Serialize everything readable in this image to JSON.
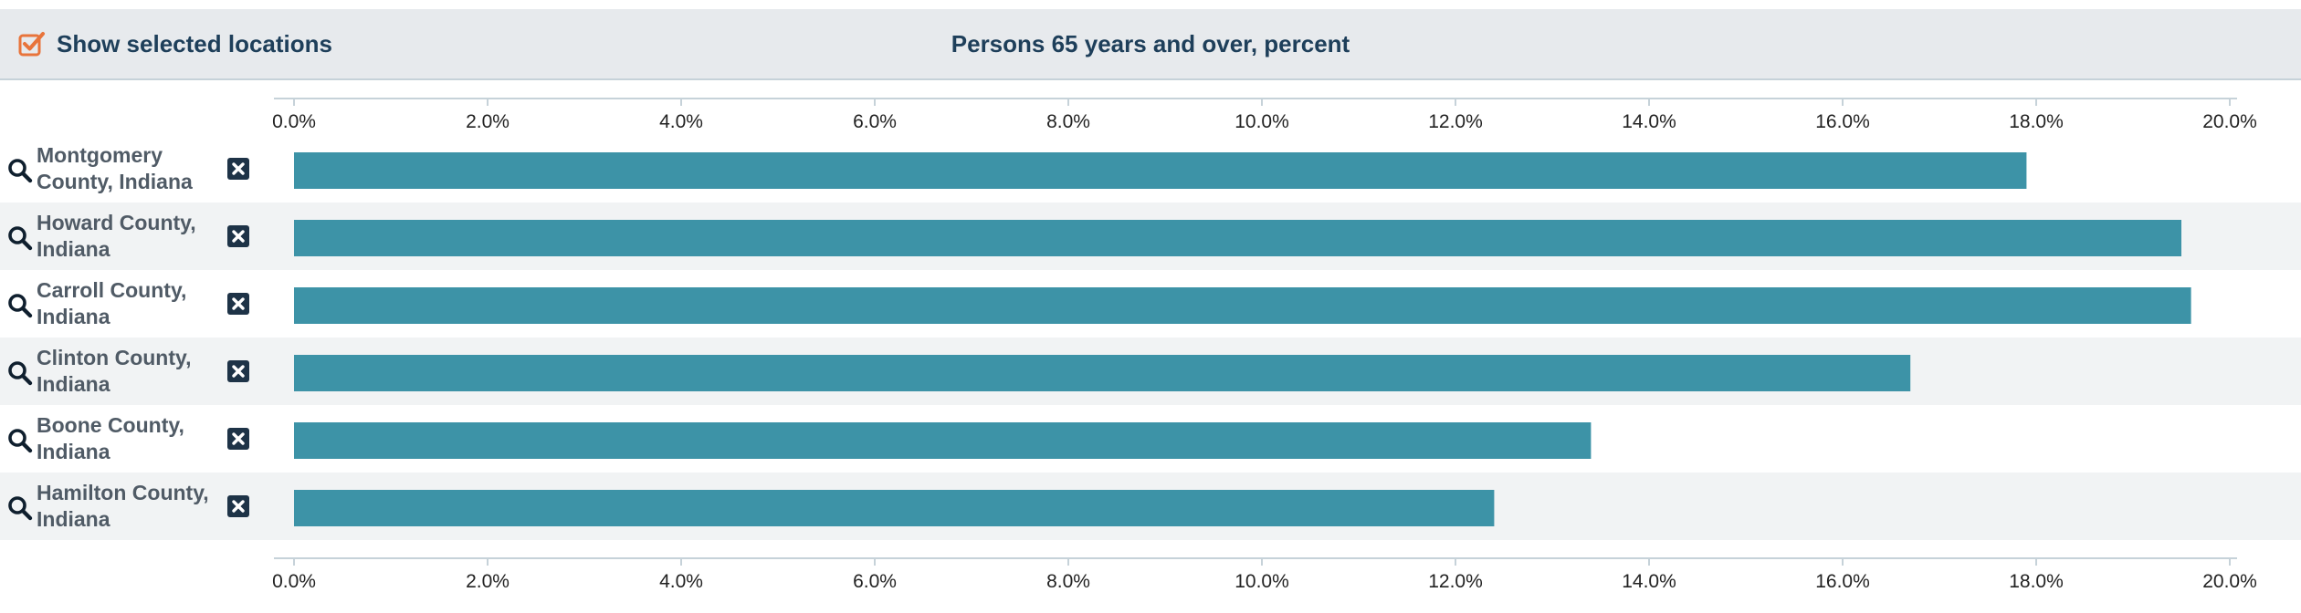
{
  "header": {
    "toggle_label": "Show selected locations",
    "toggle_checked": true,
    "title": "Persons 65 years and over, percent"
  },
  "colors": {
    "bar": "#3d93a7",
    "checkbox": "#e8743b",
    "title_text": "#1e3f5a",
    "remove_button": "#1e3347",
    "row_alt": "#f1f3f4"
  },
  "icons": {
    "search": "search-icon",
    "remove": "close-icon",
    "toggle": "checkbox-checked-icon"
  },
  "chart_data": {
    "type": "bar",
    "orientation": "horizontal",
    "title": "Persons 65 years and over, percent",
    "categories": [
      "Montgomery County, Indiana",
      "Howard County, Indiana",
      "Carroll County, Indiana",
      "Clinton County, Indiana",
      "Boone County, Indiana",
      "Hamilton County, Indiana"
    ],
    "category_lines": [
      [
        "Montgomery",
        "County, Indiana"
      ],
      [
        "Howard County,",
        "Indiana"
      ],
      [
        "Carroll County,",
        "Indiana"
      ],
      [
        "Clinton County,",
        "Indiana"
      ],
      [
        "Boone County,",
        "Indiana"
      ],
      [
        "Hamilton County,",
        "Indiana"
      ]
    ],
    "values": [
      17.9,
      19.5,
      19.6,
      16.7,
      13.4,
      12.4
    ],
    "xlim": [
      0,
      20
    ],
    "ticks": [
      0,
      2,
      4,
      6,
      8,
      10,
      12,
      14,
      16,
      18,
      20
    ],
    "tick_labels": [
      "0.0%",
      "2.0%",
      "4.0%",
      "6.0%",
      "8.0%",
      "10.0%",
      "12.0%",
      "14.0%",
      "16.0%",
      "18.0%",
      "20.0%"
    ],
    "axis_position": "top-and-bottom",
    "grid": false,
    "legend": "none"
  }
}
